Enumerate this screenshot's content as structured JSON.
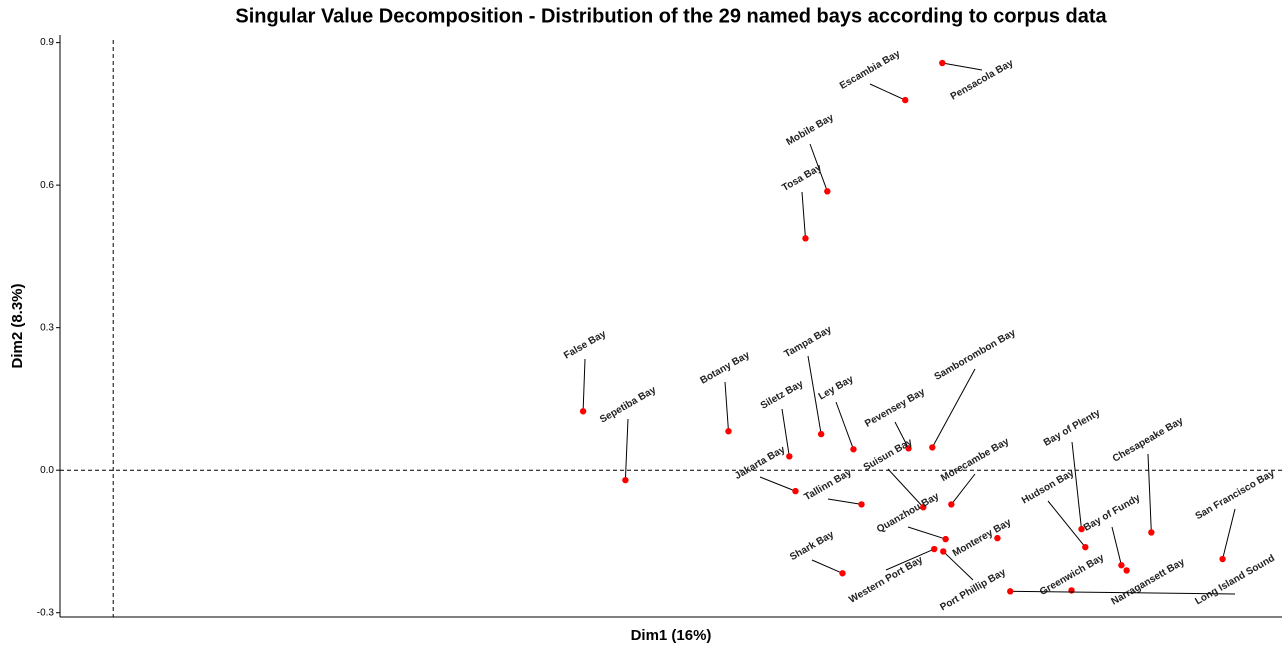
{
  "chart_data": {
    "type": "scatter",
    "title": "Singular Value Decomposition - Distribution of the 29 named bays according to corpus data",
    "x_label": "Dim1 (16%)",
    "y_label": "Dim2 (8.3%)",
    "labels": [
      "Pensacola Bay",
      "Escambia Bay",
      "Mobile Bay",
      "Tosa Bay",
      "False Bay",
      "Sepetiba Bay",
      "Botany Bay",
      "Siletz Bay",
      "Tampa Bay",
      "Ley Bay",
      "Pevensey Bay",
      "Samborombon Bay",
      "Jakarta Bay",
      "Tallinn Bay",
      "Suisun Bay",
      "Morecambe Bay",
      "Quanzhou Bay",
      "Western Port Bay",
      "Port Phillip Bay",
      "Monterey Bay",
      "Shark Bay",
      "Bay of Plenty",
      "Hudson Bay",
      "Bay of Fundy",
      "Chesapeake Bay",
      "Narragansett Bay",
      "Greenwich Bay",
      "San Francisco Bay",
      "Long Island Sound"
    ],
    "x": [
      1.745,
      1.667,
      1.503,
      1.457,
      0.989,
      1.078,
      1.295,
      1.423,
      1.49,
      1.558,
      1.674,
      1.724,
      1.436,
      1.575,
      1.705,
      1.764,
      1.752,
      1.728,
      1.747,
      1.861,
      1.535,
      2.038,
      2.046,
      2.122,
      2.185,
      2.133,
      2.017,
      2.335,
      1.888
    ],
    "y": [
      0.857,
      0.779,
      0.587,
      0.488,
      0.124,
      -0.021,
      0.082,
      0.029,
      0.076,
      0.044,
      0.046,
      0.048,
      -0.044,
      -0.072,
      -0.078,
      -0.072,
      -0.145,
      -0.166,
      -0.171,
      -0.143,
      -0.217,
      -0.124,
      -0.162,
      -0.2,
      -0.131,
      -0.211,
      -0.253,
      -0.187,
      -0.255
    ],
    "color": "#ff0000",
    "xlim": [
      -0.112,
      2.46
    ],
    "ylim": [
      -0.309,
      0.916
    ],
    "yticks": [
      -0.3,
      0.0,
      0.3,
      0.6,
      0.9
    ],
    "reference_lines": [
      0,
      0
    ]
  }
}
